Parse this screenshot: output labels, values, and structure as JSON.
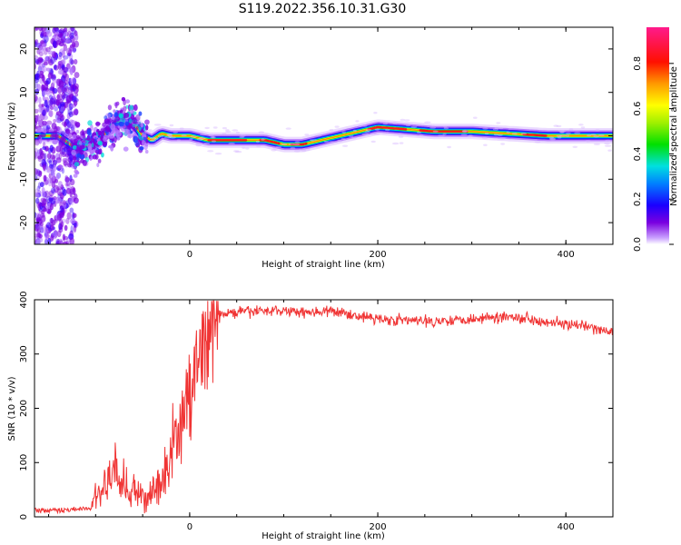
{
  "title": "S119.2022.356.10.31.G30",
  "chart_data": [
    {
      "type": "heatmap",
      "xlabel": "Height of straight line (km)",
      "ylabel": "Frequency (Hz)",
      "xlim": [
        -165,
        450
      ],
      "ylim": [
        -25,
        25
      ],
      "xticks": [
        0,
        200,
        400
      ],
      "yticks": [
        -20,
        -10,
        0,
        10,
        20
      ],
      "colorbar": {
        "label": "Normalized spectral amplitude",
        "range": [
          0.0,
          0.96
        ],
        "ticks": [
          0.0,
          0.2,
          0.4,
          0.6,
          0.8
        ],
        "colormap": "rainbow (purple → blue → cyan → green → yellow → orange → red → magenta)"
      },
      "ridge": {
        "description": "Dominant frequency ridge vs height (Hz)",
        "x": [
          -165,
          -140,
          -120,
          -100,
          -80,
          -60,
          -50,
          -40,
          -30,
          -20,
          0,
          20,
          40,
          60,
          80,
          100,
          120,
          140,
          160,
          180,
          200,
          230,
          260,
          300,
          340,
          380,
          420,
          450
        ],
        "y": [
          0,
          0,
          -3,
          -2,
          3,
          3,
          0,
          -1,
          0.5,
          0,
          0,
          -1,
          -1,
          -1,
          -1,
          -2,
          -2,
          -1,
          0,
          1,
          2,
          1.5,
          1,
          1,
          0.5,
          0,
          0,
          0
        ]
      }
    },
    {
      "type": "line",
      "xlabel": "Height of straight line (km)",
      "ylabel": "SNR (10 * v/v)",
      "xlim": [
        -165,
        450
      ],
      "ylim": [
        0,
        400
      ],
      "xticks": [
        0,
        200,
        400
      ],
      "yticks": [
        0,
        100,
        200,
        300,
        400
      ],
      "color": "#f03434",
      "series": [
        {
          "description": "SNR envelope (approximate mean) vs height",
          "x": [
            -165,
            -140,
            -120,
            -105,
            -100,
            -90,
            -80,
            -70,
            -60,
            -50,
            -40,
            -30,
            -25,
            -20,
            -15,
            -10,
            -5,
            0,
            5,
            10,
            15,
            20,
            25,
            30,
            40,
            60,
            80,
            100,
            120,
            140,
            160,
            180,
            200,
            250,
            300,
            340,
            380,
            420,
            450
          ],
          "y": [
            12,
            12,
            14,
            15,
            35,
            55,
            75,
            60,
            45,
            30,
            45,
            60,
            80,
            110,
            140,
            160,
            200,
            210,
            250,
            280,
            300,
            340,
            360,
            370,
            375,
            378,
            380,
            380,
            378,
            378,
            377,
            370,
            365,
            360,
            365,
            370,
            360,
            350,
            340
          ]
        }
      ]
    }
  ]
}
